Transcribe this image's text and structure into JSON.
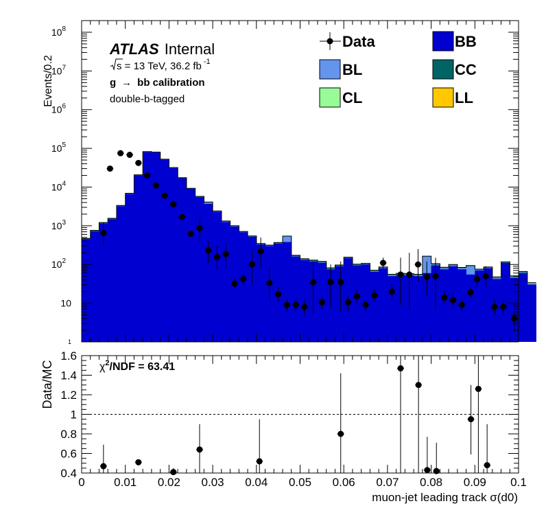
{
  "chart_data": [
    {
      "panel": "main",
      "type": "bar",
      "stacked": true,
      "ylog": true,
      "ylabel": "Events/0.2",
      "ylim": [
        1,
        200000000
      ],
      "xlim": [
        0,
        0.1
      ],
      "bin_width": 0.002,
      "yticks": [
        {
          "v": 100000000,
          "base": "10",
          "exp": "8"
        },
        {
          "v": 10000000,
          "base": "10",
          "exp": "7"
        },
        {
          "v": 1000000,
          "base": "10",
          "exp": "6"
        },
        {
          "v": 100000,
          "base": "10",
          "exp": "5"
        },
        {
          "v": 10000,
          "base": "10",
          "exp": "4"
        },
        {
          "v": 1000,
          "base": "10",
          "exp": "3"
        },
        {
          "v": 100,
          "base": "10",
          "exp": "2"
        },
        {
          "v": 10,
          "base": "10",
          "exp": ""
        },
        {
          "v": 1,
          "base": "1",
          "exp": ""
        }
      ],
      "atlas_label": "ATLAS",
      "atlas_sub": "Internal",
      "lumi_sqrt": "s",
      "lumi_text": " = 13 TeV, 36.2 fb",
      "lumi_exp": "-1",
      "process_g": "g",
      "process_arrow": "→",
      "process_rest": "bb calibration",
      "tag_text": "double-b-tagged",
      "legend": [
        {
          "name": "Data",
          "style": "marker"
        },
        {
          "name": "BB",
          "color": "#0000d0"
        },
        {
          "name": "BL",
          "color": "#6495ed"
        },
        {
          "name": "CC",
          "color": "#006464"
        },
        {
          "name": "CL",
          "color": "#98fb98"
        },
        {
          "name": "LL",
          "color": "#ffc800"
        }
      ],
      "series": [
        {
          "name": "BB",
          "color": "#0000d0",
          "values": [
            450,
            720,
            1150,
            1480,
            3200,
            6600,
            20000,
            80000,
            78000,
            51000,
            31000,
            17000,
            9000,
            5500,
            3700,
            2300,
            1250,
            950,
            680,
            520,
            330,
            300,
            350,
            380,
            160,
            130,
            120,
            110,
            75,
            90,
            145,
            95,
            100,
            65,
            80,
            50,
            53,
            52,
            50,
            60,
            95,
            75,
            90,
            75,
            55,
            70,
            80,
            42,
            110,
            45,
            60,
            30
          ]
        },
        {
          "name": "BL",
          "color": "#6495ed",
          "values": [
            0,
            10,
            15,
            20,
            40,
            90,
            200,
            900,
            700,
            500,
            300,
            200,
            100,
            80,
            300,
            50,
            30,
            20,
            10,
            10,
            8,
            5,
            8,
            150,
            3,
            3,
            3,
            3,
            2,
            2,
            2,
            2,
            2,
            2,
            2,
            2,
            2,
            2,
            2,
            100,
            5,
            5,
            5,
            5,
            35,
            2,
            2,
            2,
            2,
            2,
            2,
            1
          ]
        },
        {
          "name": "CC",
          "color": "#006464",
          "values": [
            20,
            30,
            40,
            50,
            100,
            200,
            500,
            1500,
            1500,
            1000,
            600,
            300,
            200,
            150,
            100,
            60,
            40,
            30,
            20,
            15,
            10,
            10,
            10,
            10,
            8,
            6,
            5,
            5,
            3,
            3,
            5,
            3,
            3,
            2,
            2,
            2,
            2,
            2,
            2,
            2,
            3,
            3,
            3,
            2,
            2,
            2,
            2,
            2,
            3,
            2,
            2,
            1
          ]
        },
        {
          "name": "CL",
          "color": "#98fb98",
          "values": [
            2,
            3,
            4,
            5,
            10,
            20,
            50,
            100,
            100,
            80,
            50,
            30,
            15,
            10,
            10,
            8,
            5,
            3,
            2,
            2,
            1,
            1,
            1,
            1,
            1,
            1,
            1,
            1,
            1,
            1,
            1,
            1,
            1,
            1,
            1,
            1,
            1,
            1,
            1,
            1,
            1,
            1,
            1,
            1,
            1,
            1,
            1,
            1,
            1,
            1,
            1,
            1
          ]
        },
        {
          "name": "LL",
          "color": "#ffc800",
          "values": [
            1,
            1,
            2,
            2,
            5,
            10,
            20,
            50,
            50,
            40,
            25,
            15,
            8,
            5,
            5,
            4,
            3,
            2,
            1,
            1,
            1,
            1,
            1,
            1,
            1,
            1,
            1,
            1,
            1,
            1,
            1,
            1,
            1,
            1,
            1,
            1,
            1,
            1,
            1,
            1,
            1,
            1,
            1,
            1,
            1,
            1,
            1,
            1,
            1,
            1,
            1,
            1
          ]
        }
      ],
      "data_points": [
        {
          "x": 0.005,
          "y": 650,
          "lo": 330,
          "hi": 1200
        },
        {
          "x": 0.0065,
          "y": 30000
        },
        {
          "x": 0.0089,
          "y": 75000
        },
        {
          "x": 0.011,
          "y": 68000
        },
        {
          "x": 0.013,
          "y": 42000
        },
        {
          "x": 0.015,
          "y": 20000
        },
        {
          "x": 0.017,
          "y": 11000
        },
        {
          "x": 0.019,
          "y": 6000
        },
        {
          "x": 0.021,
          "y": 3600
        },
        {
          "x": 0.023,
          "y": 1700
        },
        {
          "x": 0.025,
          "y": 620
        },
        {
          "x": 0.027,
          "y": 870,
          "lo": 400,
          "hi": 1500
        },
        {
          "x": 0.029,
          "y": 230,
          "lo": 110,
          "hi": 400
        },
        {
          "x": 0.031,
          "y": 155,
          "lo": 70,
          "hi": 300
        },
        {
          "x": 0.033,
          "y": 185,
          "lo": 80,
          "hi": 350
        },
        {
          "x": 0.035,
          "y": 32,
          "lo": 24,
          "hi": 45
        },
        {
          "x": 0.037,
          "y": 42,
          "lo": 30,
          "hi": 55
        },
        {
          "x": 0.039,
          "y": 100,
          "lo": 30,
          "hi": 250
        },
        {
          "x": 0.041,
          "y": 220,
          "lo": 80,
          "hi": 500
        },
        {
          "x": 0.043,
          "y": 33,
          "lo": 12,
          "hi": 80
        },
        {
          "x": 0.045,
          "y": 17,
          "lo": 11,
          "hi": 25
        },
        {
          "x": 0.047,
          "y": 9,
          "lo": 6,
          "hi": 13
        },
        {
          "x": 0.049,
          "y": 9,
          "lo": 6,
          "hi": 13
        },
        {
          "x": 0.051,
          "y": 8,
          "lo": 5,
          "hi": 12
        },
        {
          "x": 0.053,
          "y": 35,
          "lo": 5,
          "hi": 120
        },
        {
          "x": 0.055,
          "y": 10.5,
          "lo": 7,
          "hi": 15
        },
        {
          "x": 0.057,
          "y": 35,
          "lo": 8,
          "hi": 100
        },
        {
          "x": 0.0593,
          "y": 35,
          "lo": 6,
          "hi": 120
        },
        {
          "x": 0.061,
          "y": 10.5,
          "lo": 6,
          "hi": 16
        },
        {
          "x": 0.063,
          "y": 15,
          "lo": 10,
          "hi": 22
        },
        {
          "x": 0.065,
          "y": 9,
          "lo": 6,
          "hi": 13
        },
        {
          "x": 0.067,
          "y": 16,
          "lo": 11,
          "hi": 23
        },
        {
          "x": 0.069,
          "y": 110,
          "lo": 80,
          "hi": 150
        },
        {
          "x": 0.071,
          "y": 20,
          "lo": 13,
          "hi": 30
        },
        {
          "x": 0.073,
          "y": 55,
          "lo": 9,
          "hi": 150
        },
        {
          "x": 0.075,
          "y": 55,
          "lo": 7,
          "hi": 200
        },
        {
          "x": 0.077,
          "y": 100,
          "lo": 35,
          "hi": 250
        },
        {
          "x": 0.079,
          "y": 48,
          "lo": 15,
          "hi": 120
        },
        {
          "x": 0.081,
          "y": 50,
          "lo": 7,
          "hi": 150
        },
        {
          "x": 0.083,
          "y": 14,
          "lo": 10,
          "hi": 20
        },
        {
          "x": 0.085,
          "y": 12,
          "lo": 8,
          "hi": 17
        },
        {
          "x": 0.087,
          "y": 9,
          "lo": 6,
          "hi": 13
        },
        {
          "x": 0.089,
          "y": 19,
          "lo": 14,
          "hi": 25
        },
        {
          "x": 0.0905,
          "y": 42,
          "lo": 27,
          "hi": 62
        },
        {
          "x": 0.0925,
          "y": 50,
          "lo": 25,
          "hi": 90
        },
        {
          "x": 0.0945,
          "y": 8,
          "lo": 5,
          "hi": 12
        },
        {
          "x": 0.0965,
          "y": 8,
          "lo": 5,
          "hi": 12
        },
        {
          "x": 0.099,
          "y": 4,
          "lo": 2,
          "hi": 6
        }
      ]
    },
    {
      "panel": "ratio",
      "type": "scatter",
      "xlabel_pre": "muon-jet leading track ",
      "xlabel_sigma": "σ",
      "xlabel_post": "(d0)",
      "ylabel": "Data/MC",
      "ylim": [
        0.4,
        1.6
      ],
      "xlim": [
        0,
        0.1
      ],
      "ref_line": 1,
      "yticks": [
        "1.6",
        "1.4",
        "1.2",
        "1",
        "0.8",
        "0.6",
        "0.4"
      ],
      "xticks": [
        "0",
        "0.01",
        "0.02",
        "0.03",
        "0.04",
        "0.05",
        "0.06",
        "0.07",
        "0.08",
        "0.09",
        "0.1"
      ],
      "chi2_chi": "χ",
      "chi2_rest": "/NDF = 63.41",
      "chi2_sup": "2",
      "points": [
        {
          "x": 0.005,
          "y": 0.47,
          "lo": 0.39,
          "hi": 0.69
        },
        {
          "x": 0.013,
          "y": 0.51,
          "lo": 0.5,
          "hi": 0.52
        },
        {
          "x": 0.021,
          "y": 0.41,
          "lo": 0.38,
          "hi": 0.45
        },
        {
          "x": 0.027,
          "y": 0.64,
          "lo": 0.38,
          "hi": 0.9
        },
        {
          "x": 0.0407,
          "y": 0.52,
          "lo": 0.38,
          "hi": 0.95
        },
        {
          "x": 0.0593,
          "y": 0.8,
          "lo": 0.38,
          "hi": 1.42
        },
        {
          "x": 0.073,
          "y": 1.47,
          "lo": 0.38,
          "hi": 1.62
        },
        {
          "x": 0.0771,
          "y": 1.3,
          "lo": 0.38,
          "hi": 1.62
        },
        {
          "x": 0.0791,
          "y": 0.43,
          "lo": 0.38,
          "hi": 0.77
        },
        {
          "x": 0.0812,
          "y": 0.42,
          "lo": 0.38,
          "hi": 0.71
        },
        {
          "x": 0.0891,
          "y": 0.95,
          "lo": 0.59,
          "hi": 1.3
        },
        {
          "x": 0.0908,
          "y": 1.26,
          "lo": 0.38,
          "hi": 1.62
        },
        {
          "x": 0.0928,
          "y": 0.48,
          "lo": 0.38,
          "hi": 0.9
        }
      ]
    }
  ]
}
